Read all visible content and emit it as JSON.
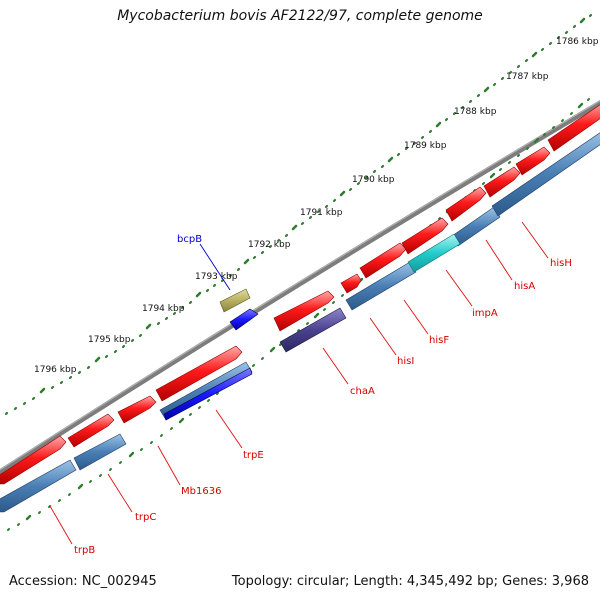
{
  "title": "Mycobacterium bovis AF2122/97, complete genome",
  "footer": {
    "accession": "Accession: NC_002945",
    "stats": "Topology: circular; Length: 4,345,492 bp; Genes: 3,968"
  },
  "colors": {
    "backbone": "#7a7a7a",
    "tick": "#2e7d2e",
    "cds_forward": "#ff1a1a",
    "cds_reverse": "#4a7fb5",
    "label": "#d40000",
    "other_label": "#0000cc"
  },
  "kbp_labels": [
    "1786 kbp",
    "1787 kbp",
    "1788 kbp",
    "1789 kbp",
    "1790 kbp",
    "1791 kbp",
    "1792 kbp",
    "1793 kbp",
    "1794 kbp",
    "1795 kbp",
    "1796 kbp"
  ],
  "gene_labels": [
    {
      "name": "hisH",
      "color": "#d40000"
    },
    {
      "name": "hisA",
      "color": "#d40000"
    },
    {
      "name": "impA",
      "color": "#d40000"
    },
    {
      "name": "hisF",
      "color": "#d40000"
    },
    {
      "name": "hisI",
      "color": "#d40000"
    },
    {
      "name": "chaA",
      "color": "#d40000"
    },
    {
      "name": "trpE",
      "color": "#d40000"
    },
    {
      "name": "Mb1636",
      "color": "#d40000"
    },
    {
      "name": "trpC",
      "color": "#d40000"
    },
    {
      "name": "trpB",
      "color": "#d40000"
    },
    {
      "name": "bcpB",
      "color": "#0000cc"
    }
  ]
}
